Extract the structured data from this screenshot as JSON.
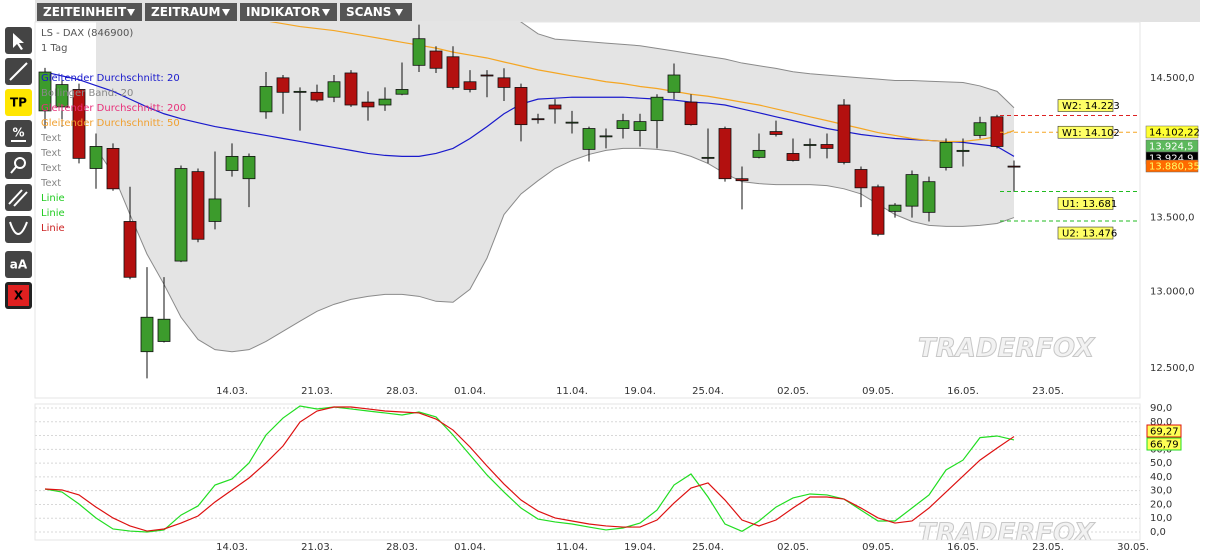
{
  "menu": [
    "ZEITEINHEIT",
    "ZEITRAUM",
    "INDIKATOR",
    "SCANS"
  ],
  "tools": [
    "TP",
    "%",
    "aA",
    "X"
  ],
  "watermark": "TRADERFOX",
  "chart_data": [
    {
      "type": "candlestick",
      "title": "LS - DAX (846900)",
      "subtitle": "1 Tag",
      "log": true,
      "ylim": [
        12310,
        14920
      ],
      "yticks": [
        {
          "value": 12500,
          "label": "12.500,0"
        },
        {
          "value": 13000,
          "label": "13.000,0"
        },
        {
          "value": 13500,
          "label": "13.500,0"
        },
        {
          "value": 14500,
          "label": "14.500,0"
        }
      ],
      "categories": [
        null,
        null,
        null,
        null,
        null,
        null,
        null,
        null,
        null,
        null,
        null,
        "14.03.",
        null,
        null,
        null,
        null,
        "21.03.",
        null,
        null,
        null,
        null,
        "28.03.",
        null,
        null,
        null,
        "01.04.",
        null,
        null,
        null,
        null,
        null,
        "11.04.",
        null,
        null,
        null,
        "19.04.",
        null,
        null,
        null,
        "25.04.",
        null,
        null,
        null,
        null,
        "02.05.",
        null,
        null,
        null,
        null,
        "09.05.",
        null,
        null,
        null,
        null,
        "16.05.",
        null,
        null,
        null,
        null,
        "23.05."
      ],
      "up_color": "#3c9b2c",
      "down_color": "#b3100f",
      "open": [
        14257,
        14286,
        14414,
        13843,
        13986,
        13473,
        12605,
        12671,
        13203,
        13821,
        13473,
        13829,
        13771,
        14250,
        14500,
        14393,
        14393,
        14357,
        14536,
        14321,
        14300,
        14379,
        14593,
        14700,
        14657,
        14471,
        14521,
        14500,
        14429,
        14200,
        14300,
        14171,
        13979,
        14071,
        14129,
        14114,
        14186,
        14393,
        14321,
        13915,
        14129,
        13771,
        13922,
        14107,
        13950,
        14007,
        14014,
        14300,
        13836,
        13714,
        13543,
        13579,
        13536,
        13850,
        13964,
        14079,
        14214,
        13860,
        null,
        null
      ],
      "high": [
        14574,
        14486,
        14457,
        14093,
        14022,
        13714,
        13162,
        13095,
        13864,
        13843,
        13964,
        14022,
        13950,
        14543,
        14521,
        14429,
        14450,
        14521,
        14557,
        14400,
        14429,
        14614,
        14900,
        14736,
        14736,
        14557,
        14557,
        14571,
        14457,
        14236,
        14343,
        14257,
        14143,
        14129,
        14236,
        14236,
        14379,
        14607,
        14379,
        14129,
        14143,
        13857,
        14093,
        14186,
        14057,
        14057,
        14093,
        14343,
        13857,
        13729,
        13600,
        13829,
        13786,
        14057,
        14057,
        14214,
        14229,
        13900,
        null,
        null
      ],
      "low": [
        14129,
        14143,
        13879,
        13700,
        13686,
        13081,
        12434,
        12664,
        13196,
        13331,
        13419,
        13786,
        13572,
        14200,
        14236,
        14114,
        14321,
        14321,
        14286,
        14186,
        14257,
        14371,
        14543,
        14536,
        14414,
        14393,
        14357,
        14329,
        14036,
        14164,
        14164,
        14093,
        13893,
        13986,
        14057,
        14000,
        13986,
        14343,
        14150,
        13879,
        13750,
        13557,
        13915,
        14071,
        13893,
        13915,
        13915,
        13872,
        13572,
        13372,
        13500,
        13500,
        13473,
        13829,
        13857,
        14057,
        13986,
        13679,
        null,
        null
      ],
      "close": [
        14543,
        14450,
        13915,
        14000,
        13700,
        13094,
        12829,
        12816,
        13843,
        13351,
        13629,
        13929,
        13929,
        14436,
        14393,
        14400,
        14336,
        14471,
        14300,
        14286,
        14343,
        14414,
        14793,
        14571,
        14429,
        14414,
        14514,
        14429,
        14157,
        14196,
        14271,
        14175,
        14129,
        14076,
        14186,
        14179,
        14357,
        14521,
        14157,
        13922,
        13771,
        13757,
        13972,
        14086,
        13900,
        14014,
        13986,
        13886,
        13707,
        13385,
        13586,
        13800,
        13750,
        14029,
        13972,
        14171,
        14000,
        13855,
        null,
        null
      ],
      "series": [
        {
          "color": "#1a1acc",
          "values": [
            14543,
            14514,
            14486,
            14443,
            14400,
            14343,
            14286,
            14236,
            14200,
            14171,
            14143,
            14122,
            14100,
            14079,
            14057,
            14036,
            14014,
            13993,
            13972,
            13950,
            13936,
            13929,
            13929,
            13950,
            13986,
            14057,
            14143,
            14236,
            14307,
            14343,
            14350,
            14357,
            14357,
            14357,
            14357,
            14350,
            14343,
            14336,
            14321,
            14314,
            14300,
            14271,
            14243,
            14214,
            14186,
            14157,
            14129,
            14107,
            14086,
            14071,
            14057,
            14050,
            14043,
            14036,
            14029,
            14014,
            14000,
            13929,
            null,
            null
          ]
        },
        {
          "color": "#f5a623",
          "values": [
            null,
            null,
            null,
            null,
            null,
            null,
            null,
            null,
            null,
            null,
            null,
            null,
            null,
            14929,
            14907,
            14885,
            14870,
            14855,
            14833,
            14811,
            14789,
            14766,
            14744,
            14722,
            14692,
            14670,
            14648,
            14618,
            14589,
            14559,
            14537,
            14514,
            14493,
            14471,
            14457,
            14436,
            14421,
            14400,
            14379,
            14364,
            14343,
            14321,
            14300,
            14271,
            14243,
            14214,
            14186,
            14157,
            14129,
            14100,
            14079,
            14057,
            14043,
            14036,
            14036,
            14050,
            14071,
            14114,
            null,
            null
          ]
        }
      ],
      "band": {
        "color": "#e4e4e4",
        "edge_color": "#8a8a8a",
        "upper": [
          null,
          null,
          null,
          15000,
          15000,
          15000,
          15000,
          15000,
          15000,
          15000,
          15000,
          15000,
          15000,
          15000,
          15000,
          15000,
          15000,
          15000,
          15000,
          15000,
          15000,
          15000,
          15000,
          15000,
          15000,
          15000,
          15000,
          15000,
          14920,
          14830,
          14790,
          14780,
          14770,
          14760,
          14750,
          14740,
          14720,
          14700,
          14680,
          14660,
          14640,
          14610,
          14590,
          14570,
          14545,
          14530,
          14520,
          14510,
          14500,
          14490,
          14480,
          14480,
          14475,
          14470,
          14465,
          14440,
          14400,
          14280,
          null,
          null
        ],
        "lower": [
          null,
          null,
          null,
          13986,
          13807,
          13521,
          13250,
          13047,
          12829,
          12684,
          12618,
          12605,
          12618,
          12671,
          12737,
          12803,
          12868,
          12914,
          12947,
          12967,
          12980,
          12980,
          12967,
          12934,
          12928,
          13014,
          13223,
          13521,
          13664,
          13757,
          13843,
          13900,
          13943,
          13972,
          13986,
          13986,
          13979,
          13964,
          13929,
          13879,
          13807,
          13750,
          13736,
          13729,
          13729,
          13729,
          13722,
          13700,
          13664,
          13593,
          13521,
          13473,
          13446,
          13439,
          13439,
          13446,
          13459,
          13500,
          null,
          null
        ]
      },
      "legend": [
        {
          "text": "Gleitender Durchschnitt: 20",
          "color": "#1a1acc"
        },
        {
          "text": "Bollinger Band: 20",
          "color": "#888888"
        },
        {
          "text": "Gleitender Durchschnitt: 200",
          "color": "#e8307a"
        },
        {
          "text": "Gleitender Durchschnitt: 50",
          "color": "#f0a030"
        },
        {
          "text": "Text",
          "color": "#888888"
        },
        {
          "text": "Text",
          "color": "#888888"
        },
        {
          "text": "Text",
          "color": "#888888"
        },
        {
          "text": "Text",
          "color": "#888888"
        },
        {
          "text": "Linie",
          "color": "#22cc22"
        },
        {
          "text": "Linie",
          "color": "#22cc22"
        },
        {
          "text": "Linie",
          "color": "#cc2222"
        }
      ],
      "annotations": [
        {
          "label": "W2: 14.223",
          "value": 14223,
          "color": "#dd2222"
        },
        {
          "label": "W1: 14.102",
          "value": 14102,
          "color": "#f5a623"
        },
        {
          "label": "U1: 13.681",
          "value": 13681,
          "color": "#22bb22"
        },
        {
          "label": "U2: 13.476",
          "value": 13476,
          "color": "#22bb22"
        }
      ],
      "price_labels": [
        {
          "label": "14.102,22",
          "color": "#ffff33",
          "text_color": "#000000"
        },
        {
          "label": "13.924,5",
          "color": "#5cb85c",
          "text_color": "#ffffff"
        },
        {
          "label": "13.924,9",
          "color": "#000000",
          "text_color": "#ffffff"
        },
        {
          "label": "13.880,35",
          "color": "#ff6a00",
          "text_color": "#ffff66"
        }
      ]
    },
    {
      "type": "line",
      "ylim": [
        -5.8,
        92.9
      ],
      "yticks": [
        {
          "value": 0,
          "label": "0,0"
        },
        {
          "value": 10,
          "label": "10,0"
        },
        {
          "value": 20,
          "label": "20,0"
        },
        {
          "value": 30,
          "label": "30,0"
        },
        {
          "value": 40,
          "label": "40,0"
        },
        {
          "value": 50,
          "label": "50,0"
        },
        {
          "value": 60,
          "label": "60,0"
        },
        {
          "value": 70,
          "label": "70,0"
        },
        {
          "value": 80,
          "label": "80,0"
        },
        {
          "value": 90,
          "label": "90,0"
        }
      ],
      "grid": true,
      "label_bg": "#ffff55",
      "categories": [
        null,
        null,
        null,
        null,
        null,
        null,
        null,
        null,
        null,
        null,
        null,
        "14.03.",
        null,
        null,
        null,
        null,
        "21.03.",
        null,
        null,
        null,
        null,
        "28.03.",
        null,
        null,
        null,
        "01.04.",
        null,
        null,
        null,
        null,
        null,
        "11.04.",
        null,
        null,
        null,
        "19.04.",
        null,
        null,
        null,
        "25.04.",
        null,
        null,
        null,
        null,
        "02.05.",
        null,
        null,
        null,
        null,
        "09.05.",
        null,
        null,
        null,
        null,
        "16.05.",
        null,
        null,
        null,
        null,
        "23.05.",
        null,
        null,
        null,
        null,
        "30.05."
      ],
      "series": [
        {
          "color": "#22dd22",
          "values": [
            31.2,
            29.0,
            20.3,
            10.2,
            2.2,
            0.7,
            0,
            1.5,
            12.3,
            18.9,
            34.1,
            38.5,
            50.1,
            70.4,
            82.7,
            91.4,
            89.3,
            90.7,
            89.3,
            87.8,
            86.4,
            84.9,
            87.1,
            83.5,
            70.4,
            55.9,
            41.4,
            29.0,
            17.4,
            9.4,
            7.3,
            5.8,
            3.6,
            1.5,
            2.9,
            6.5,
            15.9,
            34.1,
            42.1,
            25.4,
            5.8,
            0.5,
            8.0,
            18.1,
            24.7,
            27.6,
            26.9,
            23.9,
            15.9,
            8.0,
            8.0,
            17.4,
            26.9,
            45.0,
            52.2,
            68.5,
            69.7,
            66.79,
            null,
            null,
            null,
            null,
            null,
            null,
            null
          ],
          "value_labels": [
            null,
            null,
            null,
            null,
            null,
            null,
            null,
            null,
            null,
            null,
            null,
            null,
            null,
            null,
            null,
            null,
            null,
            null,
            null,
            null,
            null,
            null,
            null,
            null,
            null,
            null,
            null,
            null,
            null,
            null,
            null,
            null,
            null,
            null,
            null,
            null,
            null,
            null,
            null,
            null,
            null,
            null,
            null,
            null,
            null,
            null,
            null,
            null,
            null,
            null,
            null,
            null,
            null,
            null,
            null,
            null,
            null,
            "66,79",
            null,
            null,
            null,
            null,
            null,
            null,
            null
          ]
        },
        {
          "color": "#dd1111",
          "values": [
            31.2,
            30.5,
            26.9,
            18.1,
            10.2,
            4.4,
            0.7,
            2.2,
            6.5,
            11.6,
            21.8,
            30.5,
            39.2,
            50.1,
            62.4,
            79.8,
            87.8,
            90.7,
            90.7,
            89.3,
            87.8,
            87.1,
            86.4,
            82.0,
            74.0,
            61.7,
            47.9,
            34.8,
            23.2,
            15.2,
            10.2,
            8.0,
            5.8,
            4.4,
            3.6,
            3.6,
            8.7,
            21.0,
            31.9,
            35.6,
            23.2,
            8.7,
            4.4,
            8.7,
            17.4,
            25.4,
            25.4,
            23.9,
            17.4,
            10.2,
            6.5,
            8.0,
            17.4,
            29.0,
            40.6,
            52.2,
            60.9,
            69.27,
            null,
            null,
            null,
            null,
            null,
            null,
            null
          ],
          "value_labels": [
            null,
            null,
            null,
            null,
            null,
            null,
            null,
            null,
            null,
            null,
            null,
            null,
            null,
            null,
            null,
            null,
            null,
            null,
            null,
            null,
            null,
            null,
            null,
            null,
            null,
            null,
            null,
            null,
            null,
            null,
            null,
            null,
            null,
            null,
            null,
            null,
            null,
            null,
            null,
            null,
            null,
            null,
            null,
            null,
            null,
            null,
            null,
            null,
            null,
            null,
            null,
            null,
            null,
            null,
            null,
            null,
            null,
            "69,27",
            null,
            null,
            null,
            null,
            null,
            null,
            null
          ]
        }
      ]
    }
  ]
}
